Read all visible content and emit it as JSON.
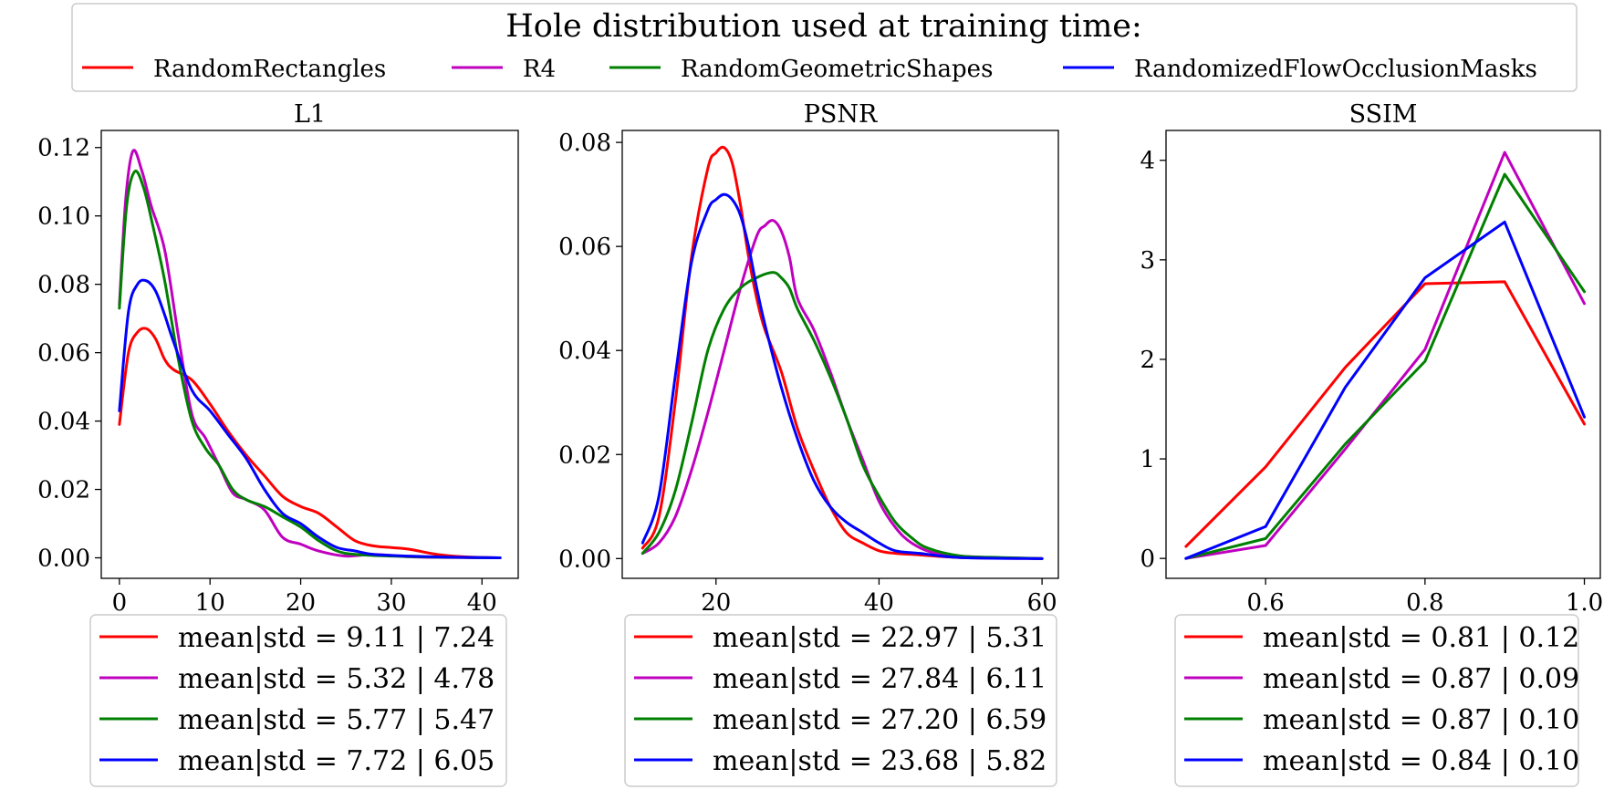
{
  "legend": {
    "title": "Hole distribution used at training time:",
    "entries": [
      {
        "name": "RandomRectangles",
        "color": "#ff0000"
      },
      {
        "name": "R4",
        "color": "#bf00bf"
      },
      {
        "name": "RandomGeometricShapes",
        "color": "#008000"
      },
      {
        "name": "RandomizedFlowOcclusionMasks",
        "color": "#0000ff"
      }
    ]
  },
  "chart_data": [
    {
      "type": "line",
      "title": "L1",
      "xlim": [
        -2,
        44
      ],
      "ylim": [
        -0.006,
        0.125
      ],
      "xticks": [
        0,
        10,
        20,
        30,
        40
      ],
      "yticks": [
        0.0,
        0.02,
        0.04,
        0.06,
        0.08,
        0.1,
        0.12
      ],
      "tick_decimals_x": 0,
      "tick_decimals_y": 2,
      "smooth": true,
      "series": [
        {
          "name": "RandomRectangles",
          "color": "#ff0000",
          "x": [
            0,
            1,
            2,
            3,
            4,
            5,
            6,
            8,
            10,
            12,
            14,
            16,
            18,
            20,
            22,
            24,
            26,
            28,
            30,
            32,
            35,
            38,
            42
          ],
          "y": [
            0.039,
            0.06,
            0.066,
            0.067,
            0.064,
            0.058,
            0.055,
            0.052,
            0.045,
            0.037,
            0.03,
            0.024,
            0.018,
            0.015,
            0.013,
            0.009,
            0.005,
            0.0035,
            0.003,
            0.0025,
            0.001,
            0.0003,
            0.0
          ]
        },
        {
          "name": "R4",
          "color": "#bf00bf",
          "x": [
            0,
            0.7,
            1.5,
            2.5,
            3.5,
            5,
            6.5,
            8,
            9.5,
            11,
            12.5,
            14,
            16,
            18,
            20,
            22,
            25,
            28,
            32,
            36,
            42
          ],
          "y": [
            0.074,
            0.105,
            0.119,
            0.113,
            0.103,
            0.09,
            0.065,
            0.042,
            0.035,
            0.027,
            0.019,
            0.017,
            0.014,
            0.006,
            0.004,
            0.002,
            0.0005,
            0.001,
            0.0003,
            0.0001,
            0.0
          ]
        },
        {
          "name": "RandomGeometricShapes",
          "color": "#008000",
          "x": [
            0,
            0.8,
            1.7,
            2.7,
            3.7,
            5,
            6.5,
            8,
            9.5,
            11,
            12.5,
            14,
            16,
            18,
            20,
            22,
            24,
            26,
            30,
            35,
            42
          ],
          "y": [
            0.073,
            0.103,
            0.113,
            0.108,
            0.097,
            0.081,
            0.058,
            0.04,
            0.032,
            0.027,
            0.02,
            0.017,
            0.015,
            0.012,
            0.009,
            0.005,
            0.002,
            0.001,
            0.0005,
            0.0002,
            0.0
          ]
        },
        {
          "name": "RandomizedFlowOcclusionMasks",
          "color": "#0000ff",
          "x": [
            0,
            1,
            2,
            3,
            4,
            5,
            6,
            8,
            10,
            12,
            14,
            16,
            18,
            20,
            22,
            24,
            26,
            28,
            32,
            36,
            42
          ],
          "y": [
            0.043,
            0.072,
            0.08,
            0.081,
            0.078,
            0.071,
            0.063,
            0.049,
            0.043,
            0.036,
            0.029,
            0.02,
            0.013,
            0.01,
            0.006,
            0.003,
            0.002,
            0.001,
            0.0005,
            0.0002,
            0.0
          ]
        }
      ],
      "legend_entries": [
        {
          "label": "mean|std = 9.11 | 7.24",
          "color": "#ff0000"
        },
        {
          "label": "mean|std = 5.32 | 4.78",
          "color": "#bf00bf"
        },
        {
          "label": "mean|std = 5.77 | 5.47",
          "color": "#008000"
        },
        {
          "label": "mean|std = 7.72 | 6.05",
          "color": "#0000ff"
        }
      ]
    },
    {
      "type": "line",
      "title": "PSNR",
      "xlim": [
        8.5,
        62
      ],
      "ylim": [
        -0.0038,
        0.0823
      ],
      "xticks": [
        20,
        40,
        60
      ],
      "yticks": [
        0.0,
        0.02,
        0.04,
        0.06,
        0.08
      ],
      "tick_decimals_x": 0,
      "tick_decimals_y": 2,
      "smooth": true,
      "series": [
        {
          "name": "RandomRectangles",
          "color": "#ff0000",
          "x": [
            11,
            13,
            15,
            17,
            19,
            20,
            21,
            22,
            23,
            24,
            25,
            26,
            28,
            30,
            32,
            34,
            36,
            38,
            40,
            42,
            45,
            50,
            60
          ],
          "y": [
            0.002,
            0.008,
            0.03,
            0.058,
            0.075,
            0.078,
            0.079,
            0.076,
            0.068,
            0.058,
            0.05,
            0.044,
            0.036,
            0.025,
            0.017,
            0.01,
            0.005,
            0.003,
            0.0015,
            0.001,
            0.0007,
            0.0002,
            0.0
          ]
        },
        {
          "name": "R4",
          "color": "#bf00bf",
          "x": [
            11,
            13,
            15,
            17,
            19,
            21,
            23,
            25,
            26,
            27,
            28,
            29,
            30,
            32,
            34,
            36,
            38,
            40,
            42,
            44,
            47,
            52,
            60
          ],
          "y": [
            0.001,
            0.003,
            0.008,
            0.017,
            0.028,
            0.04,
            0.052,
            0.062,
            0.064,
            0.065,
            0.063,
            0.058,
            0.05,
            0.044,
            0.036,
            0.027,
            0.019,
            0.011,
            0.006,
            0.003,
            0.001,
            0.0003,
            0.0
          ]
        },
        {
          "name": "RandomGeometricShapes",
          "color": "#008000",
          "x": [
            11,
            13,
            15,
            17,
            19,
            21,
            23,
            25,
            27,
            28,
            29,
            30,
            32,
            34,
            36,
            38,
            40,
            42,
            44,
            46,
            50,
            55,
            60
          ],
          "y": [
            0.001,
            0.005,
            0.013,
            0.026,
            0.04,
            0.048,
            0.052,
            0.054,
            0.055,
            0.054,
            0.052,
            0.048,
            0.042,
            0.035,
            0.027,
            0.018,
            0.012,
            0.007,
            0.004,
            0.002,
            0.0005,
            0.0002,
            0.0
          ]
        },
        {
          "name": "RandomizedFlowOcclusionMasks",
          "color": "#0000ff",
          "x": [
            11,
            13,
            15,
            17,
            19,
            20,
            21,
            22,
            23,
            24,
            25,
            26,
            28,
            30,
            32,
            34,
            36,
            38,
            40,
            42,
            45,
            50,
            60
          ],
          "y": [
            0.003,
            0.012,
            0.035,
            0.057,
            0.067,
            0.069,
            0.07,
            0.069,
            0.066,
            0.06,
            0.052,
            0.045,
            0.033,
            0.023,
            0.015,
            0.01,
            0.007,
            0.005,
            0.003,
            0.0015,
            0.001,
            0.0002,
            0.0
          ]
        }
      ],
      "legend_entries": [
        {
          "label": "mean|std = 22.97 | 5.31",
          "color": "#ff0000"
        },
        {
          "label": "mean|std = 27.84 | 6.11",
          "color": "#bf00bf"
        },
        {
          "label": "mean|std = 27.20 | 6.59",
          "color": "#008000"
        },
        {
          "label": "mean|std = 23.68 | 5.82",
          "color": "#0000ff"
        }
      ]
    },
    {
      "type": "line",
      "title": "SSIM",
      "xlim": [
        0.475,
        1.02
      ],
      "ylim": [
        -0.2,
        4.3
      ],
      "xticks": [
        0.6,
        0.8,
        1.0
      ],
      "yticks": [
        0,
        1,
        2,
        3,
        4
      ],
      "tick_decimals_x": 1,
      "tick_decimals_y": 0,
      "smooth": false,
      "series": [
        {
          "name": "RandomRectangles",
          "color": "#ff0000",
          "x": [
            0.5,
            0.6,
            0.7,
            0.8,
            0.9,
            1.0
          ],
          "y": [
            0.12,
            0.92,
            1.92,
            2.76,
            2.78,
            1.35
          ]
        },
        {
          "name": "R4",
          "color": "#bf00bf",
          "x": [
            0.5,
            0.6,
            0.7,
            0.8,
            0.9,
            1.0
          ],
          "y": [
            0.0,
            0.13,
            1.1,
            2.1,
            4.08,
            2.56
          ]
        },
        {
          "name": "RandomGeometricShapes",
          "color": "#008000",
          "x": [
            0.5,
            0.6,
            0.7,
            0.8,
            0.9,
            1.0
          ],
          "y": [
            0.0,
            0.2,
            1.15,
            1.98,
            3.86,
            2.68
          ]
        },
        {
          "name": "RandomizedFlowOcclusionMasks",
          "color": "#0000ff",
          "x": [
            0.5,
            0.6,
            0.7,
            0.8,
            0.9,
            1.0
          ],
          "y": [
            0.0,
            0.32,
            1.72,
            2.82,
            3.38,
            1.42
          ]
        }
      ],
      "legend_entries": [
        {
          "label": "mean|std = 0.81 | 0.12",
          "color": "#ff0000"
        },
        {
          "label": "mean|std = 0.87 | 0.09",
          "color": "#bf00bf"
        },
        {
          "label": "mean|std = 0.87 | 0.10",
          "color": "#008000"
        },
        {
          "label": "mean|std = 0.84 | 0.10",
          "color": "#0000ff"
        }
      ]
    }
  ]
}
